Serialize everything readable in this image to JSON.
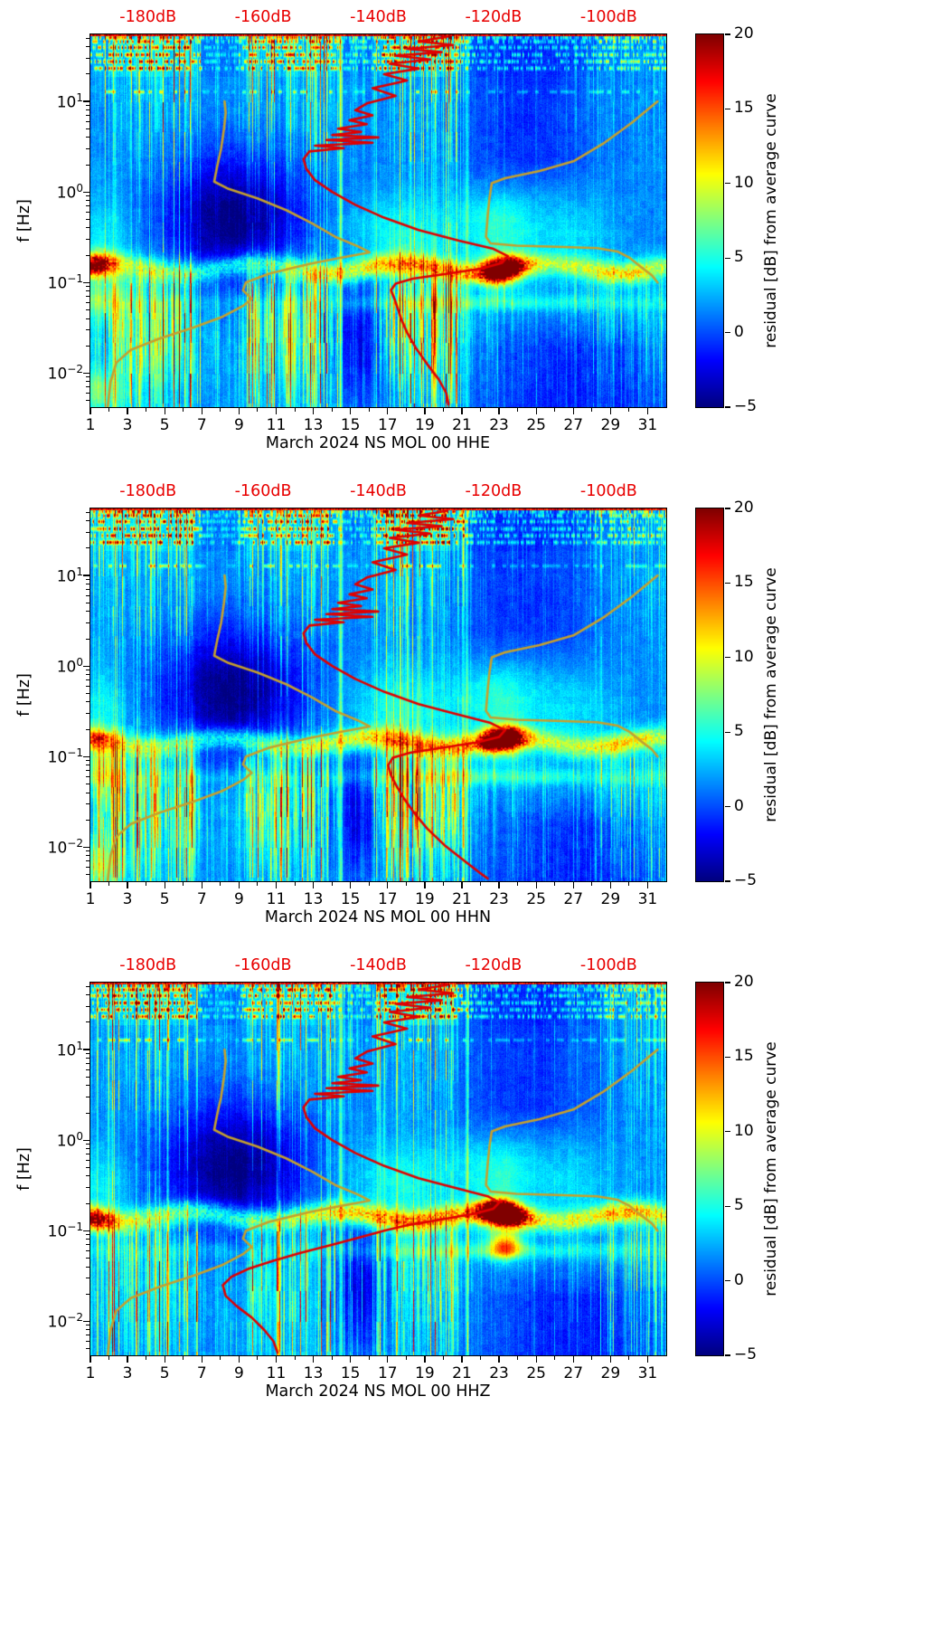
{
  "figure": {
    "ylabel": "f [Hz]",
    "colorbar_label": "residual [dB] from average curve",
    "top_db_labels": [
      "-180dB",
      "-160dB",
      "-140dB",
      "-120dB",
      "-100dB"
    ],
    "x_tick_labels": [
      "1",
      "3",
      "5",
      "7",
      "9",
      "11",
      "13",
      "15",
      "17",
      "19",
      "21",
      "23",
      "25",
      "27",
      "29",
      "31"
    ],
    "y_tick_labels": [
      {
        "base": "10",
        "exp": "1",
        "value": 10
      },
      {
        "base": "10",
        "exp": "0",
        "value": 1
      },
      {
        "base": "10",
        "exp": "−1",
        "value": 0.1
      },
      {
        "base": "10",
        "exp": "−2",
        "value": 0.01
      }
    ],
    "colorbar_ticks": [
      {
        "label": "20",
        "value": 20
      },
      {
        "label": "15",
        "value": 15
      },
      {
        "label": "10",
        "value": 10
      },
      {
        "label": "5",
        "value": 5
      },
      {
        "label": "0",
        "value": 0
      },
      {
        "label": "−5",
        "value": -5
      }
    ],
    "colors": {
      "db_label_red": "#e80000",
      "psd_curve_red": "#e00000",
      "noise_model_yellow": "#c5a02e",
      "colormap": "jet"
    }
  },
  "chart_data": {
    "type": "heatmap",
    "description": "Three spectrogram panels of seismic PSD residuals for March 2024, station NS MOL 00, channels HHE, HHN, HHZ. Color is the residual in dB from the station average PSD curve (jet colormap, -5 to 20 dB). Overlaid red curve = average PSD read on the red top axis (-190 to -90 dB); yellow curves = Peterson low/high noise models.",
    "x_axis": {
      "label_days": [
        1,
        3,
        5,
        7,
        9,
        11,
        13,
        15,
        17,
        19,
        21,
        23,
        25,
        27,
        29,
        31
      ],
      "range_days": [
        1,
        32
      ],
      "month": "March 2024"
    },
    "y_axis": {
      "label": "f [Hz]",
      "scale": "log10",
      "range_hz": [
        0.0042,
        55
      ],
      "major_ticks_hz": [
        0.01,
        0.1,
        1,
        10
      ]
    },
    "top_axis": {
      "labels_db": [
        -180,
        -160,
        -140,
        -120,
        -100
      ],
      "range_db": [
        -190,
        -90
      ],
      "color": "red"
    },
    "colorbar": {
      "label": "residual [dB] from average curve",
      "range": [
        -5,
        20
      ],
      "ticks": [
        20,
        15,
        10,
        5,
        0,
        -5
      ],
      "colormap": "jet"
    },
    "overlays": {
      "low_noise_model_db_hz": [
        [
          -187,
          0.0042
        ],
        [
          -186.5,
          0.008
        ],
        [
          -185.5,
          0.013
        ],
        [
          -183,
          0.018
        ],
        [
          -178,
          0.024
        ],
        [
          -172,
          0.032
        ],
        [
          -167,
          0.042
        ],
        [
          -163.5,
          0.055
        ],
        [
          -162,
          0.066
        ],
        [
          -163.5,
          0.082
        ],
        [
          -163,
          0.1
        ],
        [
          -159,
          0.125
        ],
        [
          -152,
          0.16
        ],
        [
          -146,
          0.19
        ],
        [
          -141.5,
          0.215
        ],
        [
          -143.5,
          0.25
        ],
        [
          -147.5,
          0.32
        ],
        [
          -151.5,
          0.45
        ],
        [
          -156,
          0.63
        ],
        [
          -161,
          0.85
        ],
        [
          -166,
          1.08
        ],
        [
          -168.5,
          1.3
        ],
        [
          -168,
          1.9
        ],
        [
          -167.3,
          3
        ],
        [
          -166.8,
          5
        ],
        [
          -166.5,
          7.5
        ],
        [
          -166.7,
          10
        ]
      ],
      "high_noise_model_db_hz": [
        [
          -91.5,
          10
        ],
        [
          -96,
          5.8
        ],
        [
          -101,
          3.4
        ],
        [
          -106,
          2.2
        ],
        [
          -112,
          1.7
        ],
        [
          -118,
          1.42
        ],
        [
          -120.3,
          1.25
        ],
        [
          -120.7,
          0.85
        ],
        [
          -121,
          0.55
        ],
        [
          -121.3,
          0.32
        ],
        [
          -120.5,
          0.27
        ],
        [
          -116,
          0.255
        ],
        [
          -109,
          0.248
        ],
        [
          -102,
          0.24
        ],
        [
          -98.5,
          0.22
        ],
        [
          -96.5,
          0.19
        ],
        [
          -94.5,
          0.15
        ],
        [
          -92.5,
          0.12
        ],
        [
          -91.5,
          0.1
        ]
      ]
    },
    "panels": [
      {
        "channel": "HHE",
        "xlabel": "March 2024 NS MOL 00 HHE",
        "average_psd_curve_db_hz": [
          [
            -128,
            52
          ],
          [
            -133,
            46
          ],
          [
            -127,
            42
          ],
          [
            -135,
            38
          ],
          [
            -129,
            35
          ],
          [
            -137,
            32
          ],
          [
            -131,
            29
          ],
          [
            -138,
            26
          ],
          [
            -133,
            23
          ],
          [
            -139,
            20
          ],
          [
            -135,
            17
          ],
          [
            -141,
            14
          ],
          [
            -137,
            11.5
          ],
          [
            -142,
            9.5
          ],
          [
            -144,
            8
          ],
          [
            -141,
            7
          ],
          [
            -145,
            6.2
          ],
          [
            -142,
            5.6
          ],
          [
            -147,
            5
          ],
          [
            -143,
            4.6
          ],
          [
            -148,
            4.25
          ],
          [
            -140,
            4
          ],
          [
            -149,
            3.75
          ],
          [
            -141,
            3.5
          ],
          [
            -151,
            3.25
          ],
          [
            -146,
            3.05
          ],
          [
            -152,
            2.8
          ],
          [
            -153,
            2.3
          ],
          [
            -152.5,
            1.8
          ],
          [
            -151,
            1.35
          ],
          [
            -148,
            1
          ],
          [
            -144,
            0.72
          ],
          [
            -139,
            0.52
          ],
          [
            -133,
            0.38
          ],
          [
            -126,
            0.29
          ],
          [
            -120,
            0.235
          ],
          [
            -117.5,
            0.195
          ],
          [
            -118.5,
            0.165
          ],
          [
            -122,
            0.143
          ],
          [
            -128,
            0.125
          ],
          [
            -134,
            0.11
          ],
          [
            -137,
            0.097
          ],
          [
            -137.8,
            0.082
          ],
          [
            -137.2,
            0.066
          ],
          [
            -136.6,
            0.051
          ],
          [
            -136,
            0.039
          ],
          [
            -135,
            0.028
          ],
          [
            -133.5,
            0.019
          ],
          [
            -131.5,
            0.0125
          ],
          [
            -129.5,
            0.0085
          ],
          [
            -128.2,
            0.006
          ],
          [
            -127.8,
            0.0045
          ]
        ]
      },
      {
        "channel": "HHN",
        "xlabel": "March 2024 NS MOL 00 HHN",
        "average_psd_curve_db_hz": [
          [
            -128,
            52
          ],
          [
            -133,
            46
          ],
          [
            -127,
            42
          ],
          [
            -135,
            38
          ],
          [
            -129,
            35
          ],
          [
            -137,
            32
          ],
          [
            -131,
            29
          ],
          [
            -138,
            26
          ],
          [
            -133,
            23
          ],
          [
            -139,
            20
          ],
          [
            -135,
            17
          ],
          [
            -141,
            14
          ],
          [
            -137,
            11.5
          ],
          [
            -142,
            9.5
          ],
          [
            -144,
            8
          ],
          [
            -141,
            7
          ],
          [
            -145,
            6.2
          ],
          [
            -142,
            5.6
          ],
          [
            -147,
            5
          ],
          [
            -143,
            4.6
          ],
          [
            -148,
            4.25
          ],
          [
            -140,
            4
          ],
          [
            -149,
            3.75
          ],
          [
            -141,
            3.5
          ],
          [
            -151,
            3.25
          ],
          [
            -146,
            3.05
          ],
          [
            -152,
            2.8
          ],
          [
            -153,
            2.3
          ],
          [
            -152.5,
            1.8
          ],
          [
            -151,
            1.35
          ],
          [
            -148,
            1
          ],
          [
            -144,
            0.72
          ],
          [
            -139,
            0.52
          ],
          [
            -133,
            0.38
          ],
          [
            -126,
            0.29
          ],
          [
            -120.5,
            0.235
          ],
          [
            -118,
            0.195
          ],
          [
            -119,
            0.165
          ],
          [
            -123,
            0.143
          ],
          [
            -129,
            0.125
          ],
          [
            -134.5,
            0.11
          ],
          [
            -137.5,
            0.097
          ],
          [
            -138.3,
            0.08
          ],
          [
            -137.8,
            0.062
          ],
          [
            -136.8,
            0.047
          ],
          [
            -135.5,
            0.034
          ],
          [
            -133.8,
            0.024
          ],
          [
            -131.5,
            0.016
          ],
          [
            -128.5,
            0.0105
          ],
          [
            -125,
            0.007
          ],
          [
            -122,
            0.005
          ],
          [
            -121,
            0.0045
          ]
        ]
      },
      {
        "channel": "HHZ",
        "xlabel": "March 2024 NS MOL 00 HHZ",
        "average_psd_curve_db_hz": [
          [
            -128,
            52
          ],
          [
            -133,
            46
          ],
          [
            -127,
            42
          ],
          [
            -135,
            38
          ],
          [
            -129,
            35
          ],
          [
            -137,
            32
          ],
          [
            -131,
            29
          ],
          [
            -138,
            26
          ],
          [
            -133,
            23
          ],
          [
            -139,
            20
          ],
          [
            -135,
            17
          ],
          [
            -141,
            14
          ],
          [
            -137,
            11.5
          ],
          [
            -142,
            9.5
          ],
          [
            -144,
            8
          ],
          [
            -141,
            7
          ],
          [
            -145,
            6.2
          ],
          [
            -142,
            5.6
          ],
          [
            -147,
            5
          ],
          [
            -143,
            4.6
          ],
          [
            -148,
            4.25
          ],
          [
            -140,
            4
          ],
          [
            -149,
            3.75
          ],
          [
            -141,
            3.5
          ],
          [
            -151,
            3.25
          ],
          [
            -146,
            3.05
          ],
          [
            -152,
            2.8
          ],
          [
            -153,
            2.3
          ],
          [
            -152.5,
            1.8
          ],
          [
            -151,
            1.35
          ],
          [
            -148,
            1
          ],
          [
            -144,
            0.72
          ],
          [
            -139,
            0.52
          ],
          [
            -133,
            0.38
          ],
          [
            -126,
            0.29
          ],
          [
            -121,
            0.24
          ],
          [
            -119,
            0.205
          ],
          [
            -120,
            0.175
          ],
          [
            -123.5,
            0.153
          ],
          [
            -129,
            0.133
          ],
          [
            -135,
            0.115
          ],
          [
            -139,
            0.1
          ],
          [
            -143,
            0.085
          ],
          [
            -148,
            0.07
          ],
          [
            -153.5,
            0.057
          ],
          [
            -158.5,
            0.046
          ],
          [
            -162.5,
            0.038
          ],
          [
            -165.5,
            0.031
          ],
          [
            -167,
            0.025
          ],
          [
            -166.5,
            0.019
          ],
          [
            -164.5,
            0.0145
          ],
          [
            -162,
            0.011
          ],
          [
            -159.8,
            0.008
          ],
          [
            -158.2,
            0.006
          ],
          [
            -157.5,
            0.0045
          ]
        ]
      }
    ],
    "notable_features": [
      "dark-red residual blob (~+20 dB) near day 23 at 0.1-0.2 Hz in all three channels",
      "persistent bright microseism band near 0.15 Hz across the whole month",
      "quiet negative-residual wedge around days 5-14 between 0.2 and 2 Hz",
      "striped transient noise columns days 2-6, 9-14 and 16-20, strongest below 0.1 Hz and above 10 Hz",
      "HHZ shows weaker long-period (<0.1 Hz) stripe noise than HHE/HHN"
    ]
  }
}
